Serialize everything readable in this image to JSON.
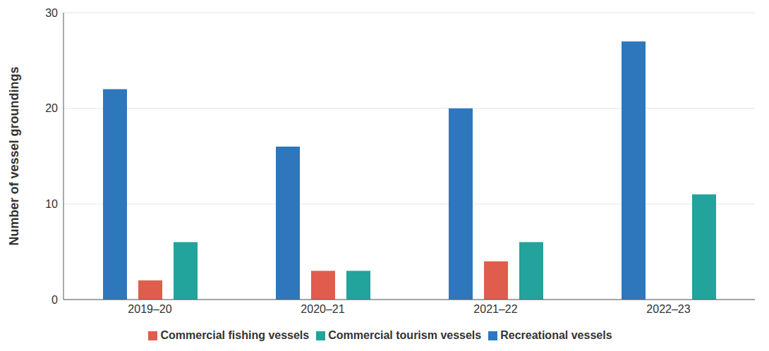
{
  "chart_data": {
    "type": "bar",
    "y_label": "Number of vessel groundings",
    "categories": [
      "2019–20",
      "2020–21",
      "2021–22",
      "2022–23"
    ],
    "series": [
      {
        "name": "Recreational vessels",
        "color": "#2e77bd",
        "values": [
          22,
          16,
          20,
          27
        ]
      },
      {
        "name": "Commercial fishing vessels",
        "color": "#e05d4d",
        "values": [
          2,
          3,
          4,
          0
        ]
      },
      {
        "name": "Commercial tourism vessels",
        "color": "#22a39b",
        "values": [
          6,
          3,
          6,
          11
        ]
      }
    ],
    "ylim": [
      0,
      30
    ],
    "yticks": [
      0,
      10,
      20,
      30
    ],
    "grid": true,
    "legend": "bottom"
  }
}
